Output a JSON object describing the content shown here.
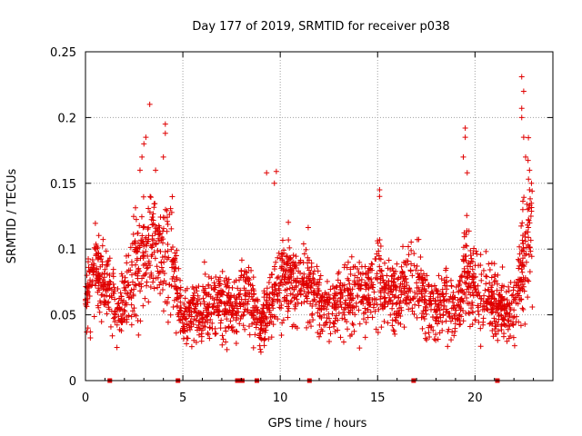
{
  "chart_data": {
    "type": "scatter",
    "title": "Day 177 of 2019, SRMTID for receiver p038",
    "xlabel": "GPS time / hours",
    "ylabel": "SRMTID / TECUs",
    "xlim": [
      0,
      24
    ],
    "ylim": [
      0,
      0.25
    ],
    "x_ticks": [
      0,
      5,
      10,
      15,
      20
    ],
    "x_tick_labels": [
      "0",
      "5",
      "10",
      "15",
      "20"
    ],
    "y_ticks": [
      0,
      0.05,
      0.1,
      0.15,
      0.2,
      0.25
    ],
    "y_tick_labels": [
      "0",
      "0.05",
      "0.1",
      "0.15",
      "0.2",
      "0.25"
    ],
    "grid": true,
    "marker": "+",
    "series_color": "#e00000",
    "num_points": 2400,
    "generation_seed": 177,
    "profile": [
      [
        0.0,
        0.062,
        0.018
      ],
      [
        0.5,
        0.085,
        0.022
      ],
      [
        1.0,
        0.08,
        0.024
      ],
      [
        1.5,
        0.055,
        0.016
      ],
      [
        2.0,
        0.06,
        0.02
      ],
      [
        2.5,
        0.09,
        0.028
      ],
      [
        3.0,
        0.1,
        0.035
      ],
      [
        3.5,
        0.105,
        0.03
      ],
      [
        4.0,
        0.1,
        0.032
      ],
      [
        4.5,
        0.085,
        0.03
      ],
      [
        5.0,
        0.048,
        0.012
      ],
      [
        5.5,
        0.052,
        0.014
      ],
      [
        6.0,
        0.058,
        0.016
      ],
      [
        6.5,
        0.058,
        0.016
      ],
      [
        7.0,
        0.06,
        0.018
      ],
      [
        7.5,
        0.05,
        0.015
      ],
      [
        8.0,
        0.065,
        0.02
      ],
      [
        8.5,
        0.06,
        0.018
      ],
      [
        9.0,
        0.04,
        0.012
      ],
      [
        9.5,
        0.06,
        0.018
      ],
      [
        10.0,
        0.075,
        0.022
      ],
      [
        10.5,
        0.08,
        0.02
      ],
      [
        11.0,
        0.07,
        0.02
      ],
      [
        11.5,
        0.072,
        0.02
      ],
      [
        12.0,
        0.06,
        0.018
      ],
      [
        12.5,
        0.055,
        0.016
      ],
      [
        13.0,
        0.058,
        0.017
      ],
      [
        13.5,
        0.06,
        0.018
      ],
      [
        14.0,
        0.07,
        0.02
      ],
      [
        14.5,
        0.065,
        0.018
      ],
      [
        15.0,
        0.075,
        0.022
      ],
      [
        15.5,
        0.065,
        0.018
      ],
      [
        16.0,
        0.065,
        0.018
      ],
      [
        16.5,
        0.072,
        0.02
      ],
      [
        17.0,
        0.075,
        0.02
      ],
      [
        17.5,
        0.06,
        0.018
      ],
      [
        18.0,
        0.055,
        0.016
      ],
      [
        18.5,
        0.06,
        0.018
      ],
      [
        19.0,
        0.05,
        0.015
      ],
      [
        19.5,
        0.09,
        0.028
      ],
      [
        20.0,
        0.07,
        0.022
      ],
      [
        20.5,
        0.065,
        0.018
      ],
      [
        21.0,
        0.06,
        0.018
      ],
      [
        21.5,
        0.055,
        0.016
      ],
      [
        22.0,
        0.05,
        0.018
      ],
      [
        22.5,
        0.1,
        0.04
      ],
      [
        22.8,
        0.12,
        0.04
      ]
    ],
    "spikes": [
      {
        "x": 3.3,
        "y": 0.21
      },
      {
        "x": 3.1,
        "y": 0.185
      },
      {
        "x": 3.0,
        "y": 0.18
      },
      {
        "x": 4.1,
        "y": 0.195
      },
      {
        "x": 4.1,
        "y": 0.188
      },
      {
        "x": 4.0,
        "y": 0.17
      },
      {
        "x": 3.6,
        "y": 0.16
      },
      {
        "x": 2.9,
        "y": 0.17
      },
      {
        "x": 2.8,
        "y": 0.16
      },
      {
        "x": 9.3,
        "y": 0.158
      },
      {
        "x": 9.8,
        "y": 0.159
      },
      {
        "x": 9.7,
        "y": 0.15
      },
      {
        "x": 15.1,
        "y": 0.145
      },
      {
        "x": 15.1,
        "y": 0.14
      },
      {
        "x": 19.5,
        "y": 0.192
      },
      {
        "x": 19.5,
        "y": 0.185
      },
      {
        "x": 19.4,
        "y": 0.17
      },
      {
        "x": 19.6,
        "y": 0.158
      },
      {
        "x": 22.4,
        "y": 0.231
      },
      {
        "x": 22.5,
        "y": 0.22
      },
      {
        "x": 22.4,
        "y": 0.207
      },
      {
        "x": 22.4,
        "y": 0.2
      },
      {
        "x": 22.5,
        "y": 0.185
      },
      {
        "x": 22.6,
        "y": 0.17
      },
      {
        "x": 22.8,
        "y": 0.16
      },
      {
        "x": 22.9,
        "y": 0.15
      },
      {
        "x": 22.8,
        "y": 0.145
      }
    ],
    "zero_markers_x": [
      1.25,
      4.75,
      7.8,
      7.95,
      8.05,
      8.8,
      11.5,
      16.85,
      21.15
    ]
  }
}
